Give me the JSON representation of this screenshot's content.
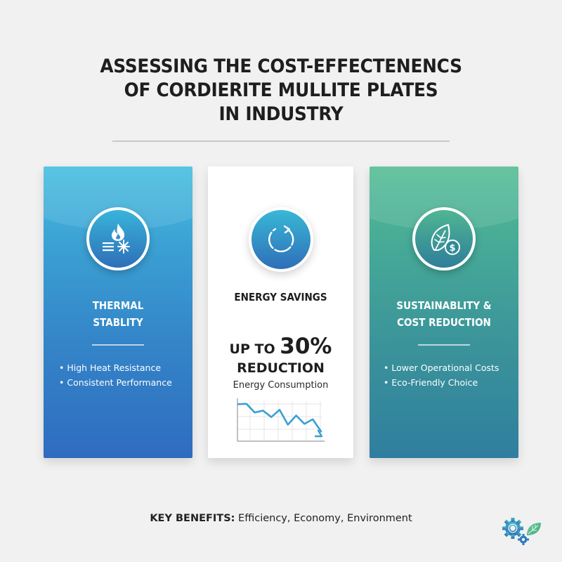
{
  "title": {
    "lines": [
      "ASSESSING THE COST-EFFECTENENCS",
      "OF CORDIERITE MULLITE PLATES",
      "IN INDUSTRY"
    ]
  },
  "cards": [
    {
      "id": "thermal",
      "icon": "flame-snowflake-icon",
      "heading_lines": [
        "THERMAL",
        "STABLITY"
      ],
      "bullets": [
        "High Heat Resistance",
        "Consistent Performance"
      ],
      "color_top": "#47bee0",
      "color_bottom": "#2f6cc0"
    },
    {
      "id": "energy",
      "icon": "cycle-arrow-icon",
      "heading": "ENERGY SAVINGS",
      "stat_prefix": "UP TO ",
      "stat_value": "30%",
      "stat_label": "REDUCTION",
      "stat_sublabel": "Energy Consumption"
    },
    {
      "id": "sustainability",
      "icon": "leaf-dollar-icon",
      "heading_lines": [
        "SUSTAINABLITY &",
        "COST REDUCTION"
      ],
      "bullets": [
        "Lower Operational Costs",
        "Eco-Friendly Choice"
      ],
      "color_top": "#56bd95",
      "color_bottom": "#2f7e9e"
    }
  ],
  "chart_data": {
    "type": "line",
    "title": "Energy Consumption",
    "x": [
      0,
      1,
      2,
      3,
      4,
      5,
      6,
      7,
      8,
      9,
      10
    ],
    "values": [
      92,
      93,
      70,
      75,
      58,
      77,
      38,
      62,
      40,
      52,
      20
    ],
    "xlabel": "",
    "ylabel": "",
    "grid": true,
    "trend": "decreasing",
    "line_color": "#3a9fd4"
  },
  "footer": {
    "key_label": "KEY BENEFITS:",
    "key_text": " Efficiency, Economy, Environment",
    "logo_icon": "gear-leaf-icon"
  }
}
